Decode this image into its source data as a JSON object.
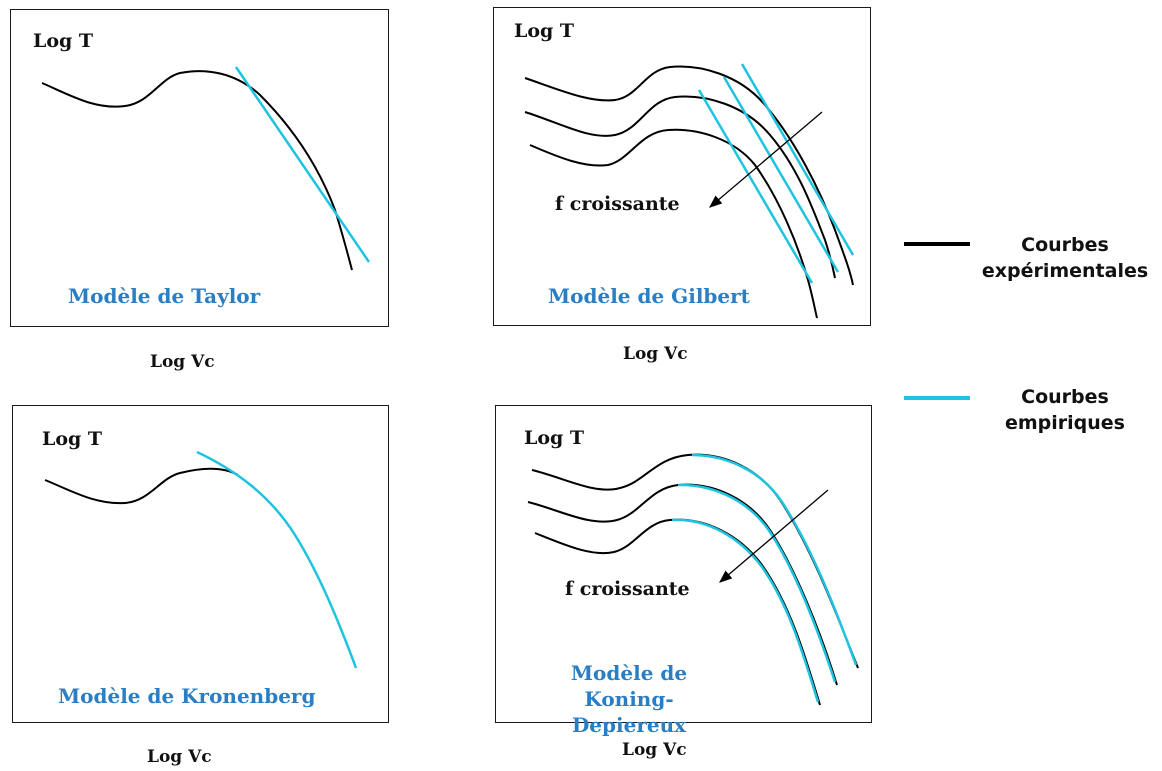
{
  "colors": {
    "experimental": "#000000",
    "empirical": "#1ec3e0",
    "model_text": "#2a7ec4"
  },
  "axis": {
    "y_label": "Log T",
    "x_label": "Log Vc"
  },
  "panels": {
    "taylor": {
      "model_label": "Modèle de Taylor"
    },
    "gilbert": {
      "model_label": "Modèle de Gilbert",
      "annotation": "f croissante"
    },
    "kronenberg": {
      "model_label": "Modèle de Kronenberg"
    },
    "koning": {
      "model_label_line1": "Modèle de Koning-",
      "model_label_line2": "Depiereux",
      "annotation": "f croissante"
    }
  },
  "legend": {
    "experimental": {
      "line1": "Courbes",
      "line2": "expérimentales"
    },
    "empirical": {
      "line1": "Courbes",
      "line2": "empiriques"
    }
  }
}
